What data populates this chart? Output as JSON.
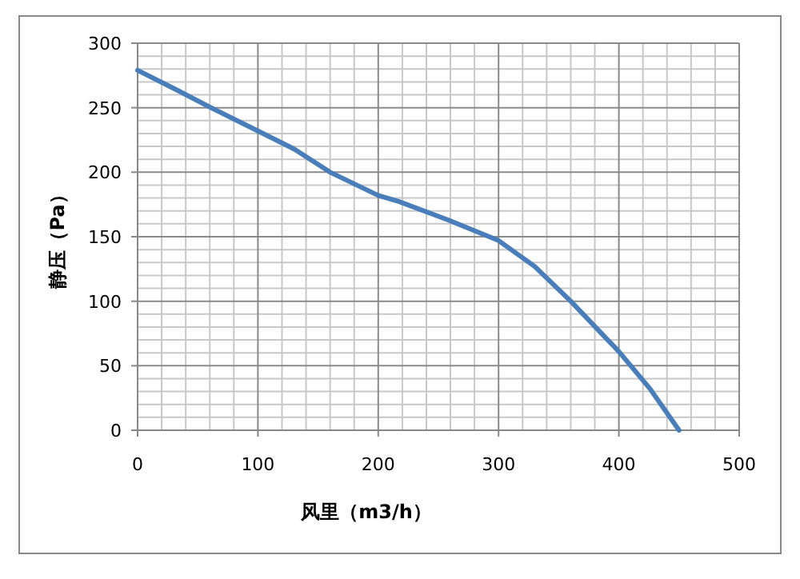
{
  "chart_data": {
    "type": "line",
    "xlabel": "风里（m3/h）",
    "ylabel": "静压（Pa）",
    "x": [
      0,
      30,
      61,
      100,
      130,
      160,
      200,
      218,
      258,
      300,
      330,
      360,
      400,
      426,
      450
    ],
    "series": [
      {
        "color": "#4a7ebb",
        "values": [
          279,
          265,
          250,
          232,
          218,
          200,
          182,
          177,
          163,
          147,
          127,
          100,
          61,
          32,
          0
        ]
      }
    ],
    "xlim": [
      0,
      500
    ],
    "ylim": [
      0,
      300
    ],
    "xticks": [
      0,
      100,
      200,
      300,
      400,
      500
    ],
    "yticks": [
      0,
      50,
      100,
      150,
      200,
      250,
      300
    ],
    "grid": true,
    "marker": "none",
    "line_style": "solid"
  }
}
